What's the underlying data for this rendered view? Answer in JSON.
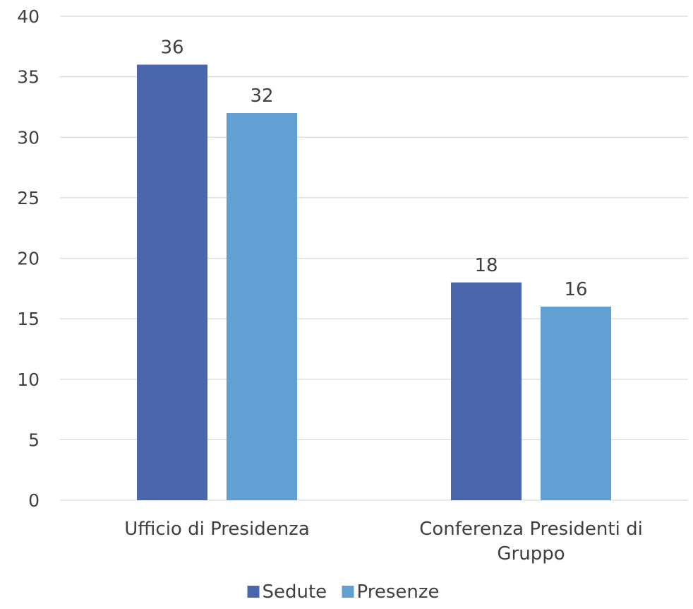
{
  "chart_data": {
    "type": "bar",
    "title": "",
    "xlabel": "",
    "ylabel": "",
    "categories": [
      [
        "Ufficio di Presidenza"
      ],
      [
        "Conferenza Presidenti di",
        "Gruppo"
      ]
    ],
    "series": [
      {
        "name": "Sedute",
        "color": "#4a67ae",
        "values": [
          36,
          18
        ]
      },
      {
        "name": "Presenze",
        "color": "#629fd3",
        "values": [
          32,
          16
        ]
      }
    ],
    "ylim": [
      0,
      40
    ],
    "yticks": [
      0,
      5,
      10,
      15,
      20,
      25,
      30,
      35,
      40
    ],
    "grid": true,
    "legend_position": "bottom",
    "data_labels": true
  }
}
